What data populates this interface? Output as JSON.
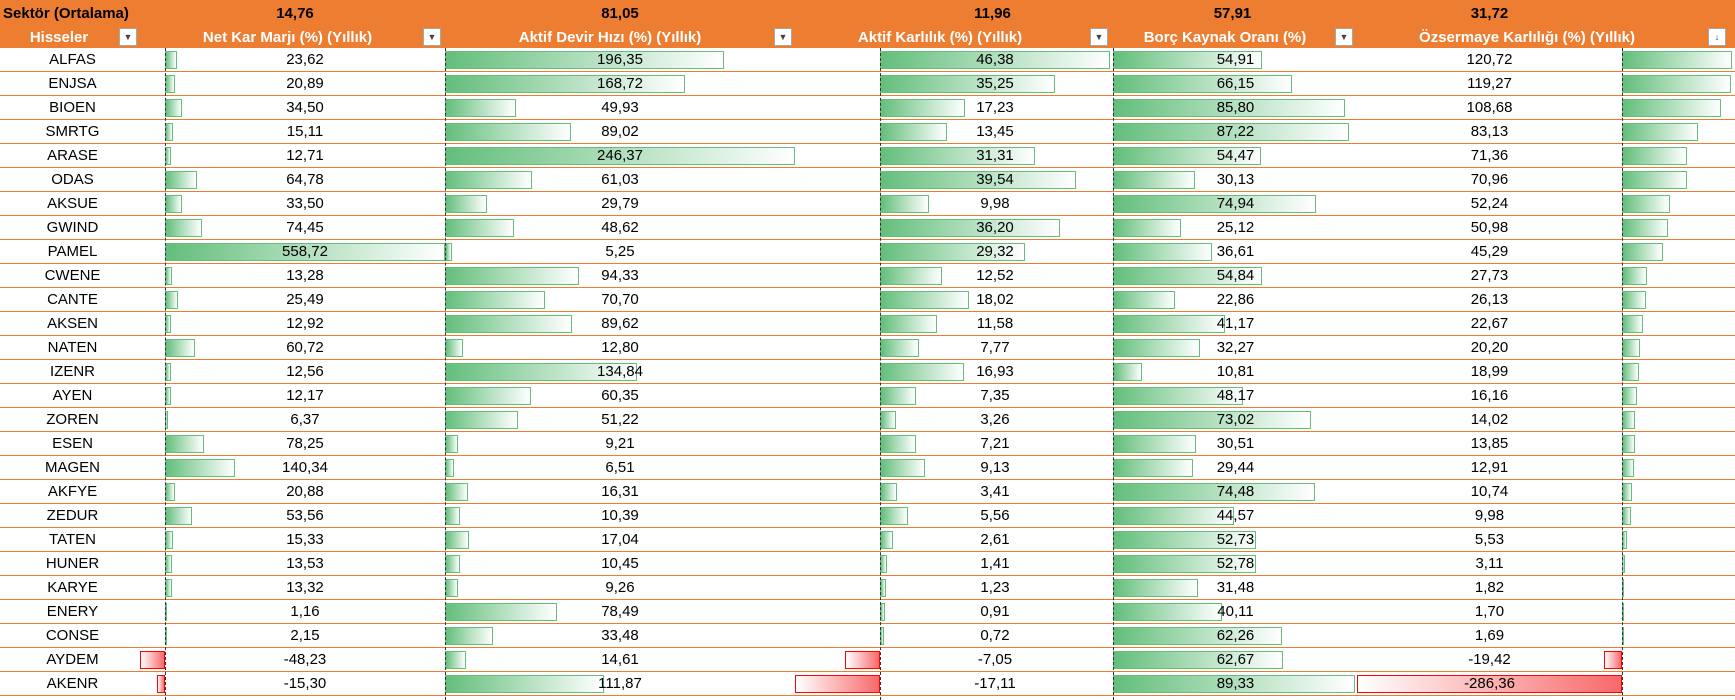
{
  "sector": {
    "label": "Sektör (Ortalama)",
    "averages": [
      "14,76",
      "81,05",
      "11,96",
      "57,91",
      "31,72"
    ]
  },
  "header": {
    "hisseler": "Hisseler",
    "columns": [
      "Net Kar Marjı (%) (Yıllık)",
      "Aktif Devir Hızı  (%) (Yıllık)",
      "Aktif Karlılık (%) (Yıllık)",
      "Borç Kaynak Oranı (%)",
      "Özsermaye Karlılığı (%) (Yıllık)"
    ],
    "filter_icons": [
      "dropdown-arrow",
      "dropdown-arrow",
      "dropdown-arrow",
      "dropdown-arrow",
      "dropdown-arrow",
      "sort-descending"
    ]
  },
  "colors": {
    "header_bg": "#ED7D31",
    "bar_positive": "#63BE7B",
    "bar_negative": "#F8696B",
    "bar_negative_border": "#FF0000"
  },
  "rows": [
    {
      "name": "ALFAS",
      "values": [
        "23,62",
        "196,35",
        "46,38",
        "54,91",
        "120,72"
      ],
      "nums": [
        23.62,
        196.35,
        46.38,
        54.91,
        120.72
      ]
    },
    {
      "name": "ENJSA",
      "values": [
        "20,89",
        "168,72",
        "35,25",
        "66,15",
        "119,27"
      ],
      "nums": [
        20.89,
        168.72,
        35.25,
        66.15,
        119.27
      ]
    },
    {
      "name": "BIOEN",
      "values": [
        "34,50",
        "49,93",
        "17,23",
        "85,80",
        "108,68"
      ],
      "nums": [
        34.5,
        49.93,
        17.23,
        85.8,
        108.68
      ]
    },
    {
      "name": "SMRTG",
      "values": [
        "15,11",
        "89,02",
        "13,45",
        "87,22",
        "83,13"
      ],
      "nums": [
        15.11,
        89.02,
        13.45,
        87.22,
        83.13
      ]
    },
    {
      "name": "ARASE",
      "values": [
        "12,71",
        "246,37",
        "31,31",
        "54,47",
        "71,36"
      ],
      "nums": [
        12.71,
        246.37,
        31.31,
        54.47,
        71.36
      ]
    },
    {
      "name": "ODAS",
      "values": [
        "64,78",
        "61,03",
        "39,54",
        "30,13",
        "70,96"
      ],
      "nums": [
        64.78,
        61.03,
        39.54,
        30.13,
        70.96
      ]
    },
    {
      "name": "AKSUE",
      "values": [
        "33,50",
        "29,79",
        "9,98",
        "74,94",
        "52,24"
      ],
      "nums": [
        33.5,
        29.79,
        9.98,
        74.94,
        52.24
      ]
    },
    {
      "name": "GWIND",
      "values": [
        "74,45",
        "48,62",
        "36,20",
        "25,12",
        "50,98"
      ],
      "nums": [
        74.45,
        48.62,
        36.2,
        25.12,
        50.98
      ]
    },
    {
      "name": "PAMEL",
      "values": [
        "558,72",
        "5,25",
        "29,32",
        "36,61",
        "45,29"
      ],
      "nums": [
        558.72,
        5.25,
        29.32,
        36.61,
        45.29
      ]
    },
    {
      "name": "CWENE",
      "values": [
        "13,28",
        "94,33",
        "12,52",
        "54,84",
        "27,73"
      ],
      "nums": [
        13.28,
        94.33,
        12.52,
        54.84,
        27.73
      ]
    },
    {
      "name": "CANTE",
      "values": [
        "25,49",
        "70,70",
        "18,02",
        "22,86",
        "26,13"
      ],
      "nums": [
        25.49,
        70.7,
        18.02,
        22.86,
        26.13
      ]
    },
    {
      "name": "AKSEN",
      "values": [
        "12,92",
        "89,62",
        "11,58",
        "41,17",
        "22,67"
      ],
      "nums": [
        12.92,
        89.62,
        11.58,
        41.17,
        22.67
      ]
    },
    {
      "name": "NATEN",
      "values": [
        "60,72",
        "12,80",
        "7,77",
        "32,27",
        "20,20"
      ],
      "nums": [
        60.72,
        12.8,
        7.77,
        32.27,
        20.2
      ]
    },
    {
      "name": "IZENR",
      "values": [
        "12,56",
        "134,84",
        "16,93",
        "10,81",
        "18,99"
      ],
      "nums": [
        12.56,
        134.84,
        16.93,
        10.81,
        18.99
      ]
    },
    {
      "name": "AYEN",
      "values": [
        "12,17",
        "60,35",
        "7,35",
        "48,17",
        "16,16"
      ],
      "nums": [
        12.17,
        60.35,
        7.35,
        48.17,
        16.16
      ]
    },
    {
      "name": "ZOREN",
      "values": [
        "6,37",
        "51,22",
        "3,26",
        "73,02",
        "14,02"
      ],
      "nums": [
        6.37,
        51.22,
        3.26,
        73.02,
        14.02
      ]
    },
    {
      "name": "ESEN",
      "values": [
        "78,25",
        "9,21",
        "7,21",
        "30,51",
        "13,85"
      ],
      "nums": [
        78.25,
        9.21,
        7.21,
        30.51,
        13.85
      ]
    },
    {
      "name": "MAGEN",
      "values": [
        "140,34",
        "6,51",
        "9,13",
        "29,44",
        "12,91"
      ],
      "nums": [
        140.34,
        6.51,
        9.13,
        29.44,
        12.91
      ]
    },
    {
      "name": "AKFYE",
      "values": [
        "20,88",
        "16,31",
        "3,41",
        "74,48",
        "10,74"
      ],
      "nums": [
        20.88,
        16.31,
        3.41,
        74.48,
        10.74
      ]
    },
    {
      "name": "ZEDUR",
      "values": [
        "53,56",
        "10,39",
        "5,56",
        "44,57",
        "9,98"
      ],
      "nums": [
        53.56,
        10.39,
        5.56,
        44.57,
        9.98
      ]
    },
    {
      "name": "TATEN",
      "values": [
        "15,33",
        "17,04",
        "2,61",
        "52,73",
        "5,53"
      ],
      "nums": [
        15.33,
        17.04,
        2.61,
        52.73,
        5.53
      ]
    },
    {
      "name": "HUNER",
      "values": [
        "13,53",
        "10,45",
        "1,41",
        "52,78",
        "3,11"
      ],
      "nums": [
        13.53,
        10.45,
        1.41,
        52.78,
        3.11
      ]
    },
    {
      "name": "KARYE",
      "values": [
        "13,32",
        "9,26",
        "1,23",
        "31,48",
        "1,82"
      ],
      "nums": [
        13.32,
        9.26,
        1.23,
        31.48,
        1.82
      ]
    },
    {
      "name": "ENERY",
      "values": [
        "1,16",
        "78,49",
        "0,91",
        "40,11",
        "1,70"
      ],
      "nums": [
        1.16,
        78.49,
        0.91,
        40.11,
        1.7
      ]
    },
    {
      "name": "CONSE",
      "values": [
        "2,15",
        "33,48",
        "0,72",
        "62,26",
        "1,69"
      ],
      "nums": [
        2.15,
        33.48,
        0.72,
        62.26,
        1.69
      ]
    },
    {
      "name": "AYDEM",
      "values": [
        "-48,23",
        "14,61",
        "-7,05",
        "62,67",
        "-19,42"
      ],
      "nums": [
        -48.23,
        14.61,
        -7.05,
        62.67,
        -19.42
      ]
    },
    {
      "name": "AKENR",
      "values": [
        "-15,30",
        "111,87",
        "-17,11",
        "89,33",
        "-286,36"
      ],
      "nums": [
        -15.3,
        111.87,
        -17.11,
        89.33,
        -286.36
      ]
    }
  ]
}
